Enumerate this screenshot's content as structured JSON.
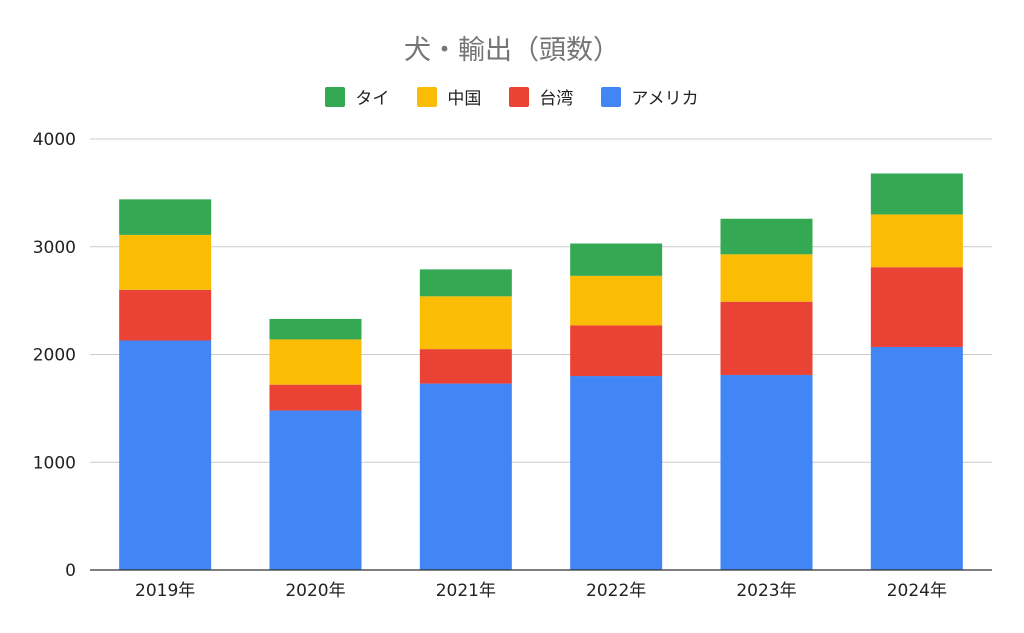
{
  "chart_data": {
    "type": "bar",
    "stacked": true,
    "title": "犬・輸出（頭数）",
    "xlabel": "",
    "ylabel": "",
    "ylim": [
      0,
      4000
    ],
    "yticks": [
      0,
      1000,
      2000,
      3000,
      4000
    ],
    "grid": true,
    "legend_position": "top-center",
    "categories": [
      "2019年",
      "2020年",
      "2021年",
      "2022年",
      "2023年",
      "2024年"
    ],
    "series": [
      {
        "name": "アメリカ",
        "color": "#4285f4",
        "values": [
          2130,
          1480,
          1730,
          1800,
          1810,
          2070
        ]
      },
      {
        "name": "台湾",
        "color": "#ea4335",
        "values": [
          470,
          240,
          320,
          470,
          680,
          740
        ]
      },
      {
        "name": "中国",
        "color": "#fbbc04",
        "values": [
          510,
          420,
          490,
          460,
          440,
          490
        ]
      },
      {
        "name": "タイ",
        "color": "#34a853",
        "values": [
          330,
          190,
          250,
          300,
          330,
          380
        ]
      }
    ],
    "legend_order": [
      "タイ",
      "中国",
      "台湾",
      "アメリカ"
    ]
  }
}
